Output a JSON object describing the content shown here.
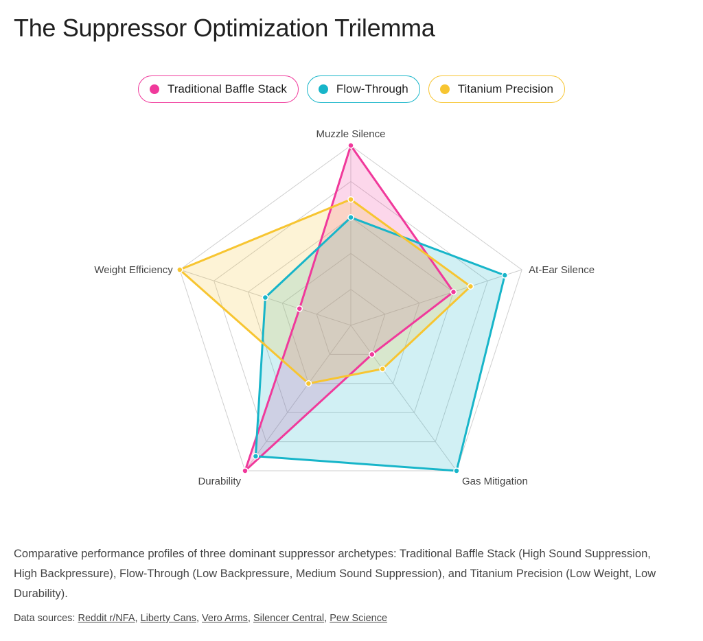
{
  "title": "The Suppressor Optimization Trilemma",
  "caption": "Comparative performance profiles of three dominant suppressor archetypes: Traditional Baffle Stack (High Sound Suppression, High Backpressure), Flow-Through (Low Backpressure, Medium Sound Suppression), and Titanium Precision (Low Weight, Low Durability).",
  "sources": {
    "label": "Data sources:",
    "links": [
      "Reddit r/NFA",
      "Liberty Cans",
      "Vero Arms",
      "Silencer Central",
      "Pew Science"
    ]
  },
  "chart_data": {
    "type": "radar",
    "axes": [
      "Muzzle Silence",
      "At-Ear Silence",
      "Gas Mitigation",
      "Durability",
      "Weight Efficiency"
    ],
    "range": [
      0,
      10
    ],
    "grid_levels": 5,
    "series": [
      {
        "name": "Traditional Baffle Stack",
        "color": "#f0399b",
        "values": [
          10,
          6,
          2,
          10,
          3
        ]
      },
      {
        "name": "Flow-Through",
        "color": "#17b5c9",
        "values": [
          6,
          9,
          10,
          9,
          5
        ]
      },
      {
        "name": "Titanium Precision",
        "color": "#f7c531",
        "values": [
          7,
          7,
          3,
          4,
          10
        ]
      }
    ]
  }
}
